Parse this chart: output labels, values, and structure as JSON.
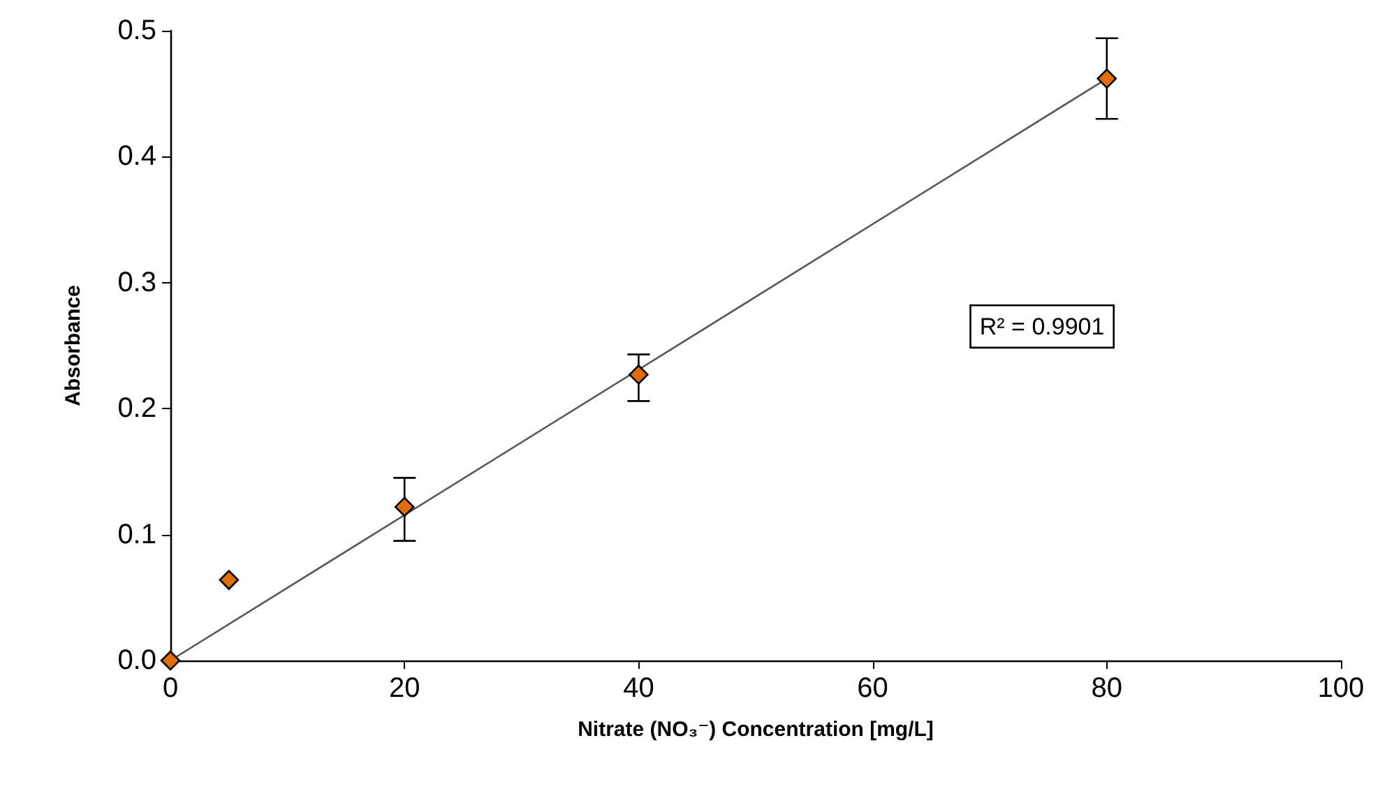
{
  "chart_data": {
    "type": "scatter",
    "xlabel": "Nitrate (NO₃⁻) Concentration [mg/L]",
    "ylabel": "Absorbance",
    "annotations": [
      "R² = 0.9901"
    ],
    "series": [
      {
        "color": "#e36c0a",
        "marker": "diamond",
        "x": [
          0,
          5,
          20,
          40,
          80
        ],
        "values": [
          0.0,
          0.064,
          0.122,
          0.227,
          0.462
        ],
        "errors": [
          null,
          null,
          [
            0.095,
            0.145
          ],
          [
            0.206,
            0.243
          ],
          [
            0.43,
            0.494
          ]
        ]
      },
      {
        "type": "line",
        "color": "#595959",
        "marker": "none",
        "line_style": "solid",
        "x": [
          0,
          80
        ],
        "values": [
          0.0,
          0.462
        ]
      }
    ],
    "xlim": [
      0,
      100
    ],
    "xticks": [
      0,
      20,
      40,
      60,
      80,
      100
    ],
    "ylim": [
      0,
      0.5
    ],
    "yticks": [
      {
        "value": 0,
        "label": "0.0"
      },
      {
        "value": 0.1,
        "label": "0.1"
      },
      {
        "value": 0.2,
        "label": "0.2"
      },
      {
        "value": 0.3,
        "label": "0.3"
      },
      {
        "value": 0.4,
        "label": "0.4"
      },
      {
        "value": 0.5,
        "label": "0.5"
      }
    ],
    "grid": false
  }
}
